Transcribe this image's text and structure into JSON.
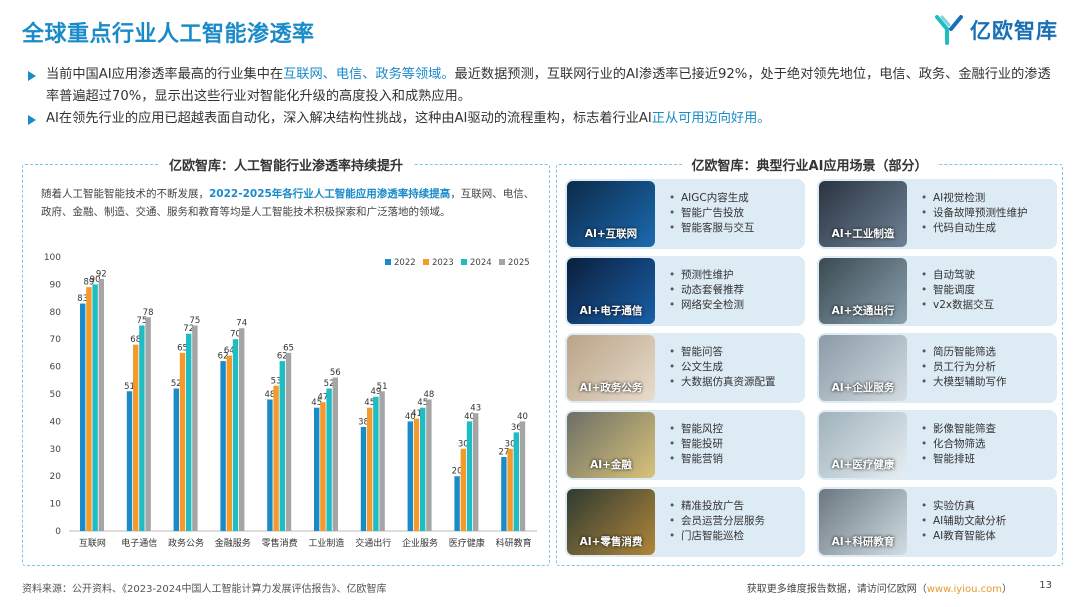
{
  "title": "全球重点行业人工智能渗透率",
  "logo_text": "亿欧智库",
  "bullets": [
    {
      "segments": [
        {
          "text": "当前中国AI应用渗透率最高的行业集中在",
          "hl": false
        },
        {
          "text": "互联网、电信、政务等领域。",
          "hl": true
        },
        {
          "text": "最近数据预测，互联网行业的AI渗透率已接近92%，处于绝对领先地位，电信、政务、金融行业的渗透率普遍超过70%，显示出这些行业对智能化升级的高度投入和成熟应用。",
          "hl": false
        }
      ]
    },
    {
      "segments": [
        {
          "text": "AI在领先行业的应用已超越表面自动化，深入解决结构性挑战，这种由AI驱动的流程重构，标志着行业AI",
          "hl": false
        },
        {
          "text": "正从可用迈向好用。",
          "hl": true
        }
      ]
    }
  ],
  "left_panel": {
    "title": "亿欧智库：人工智能行业渗透率持续提升",
    "intro_before": "随着人工智能智能技术的不断发展，",
    "intro_hl": "2022-2025年各行业人工智能应用渗透率持续提高",
    "intro_after": "，互联网、电信、政府、金融、制造、交通、服务和教育等均是人工智能技术积极探索和广泛落地的领域。"
  },
  "chart_data": {
    "type": "bar",
    "categories": [
      "互联网",
      "电子通信",
      "政务公务",
      "金融服务",
      "零售消费",
      "工业制造",
      "交通出行",
      "企业服务",
      "医疗健康",
      "科研教育"
    ],
    "series": [
      {
        "name": "2022",
        "color": "#1A8BC9",
        "values": [
          83,
          51,
          52,
          62,
          48,
          45,
          38,
          40,
          20,
          27
        ]
      },
      {
        "name": "2023",
        "color": "#F39A2B",
        "values": [
          89,
          68,
          65,
          64,
          53,
          47,
          45,
          41,
          30,
          30
        ]
      },
      {
        "name": "2024",
        "color": "#1FBCC2",
        "values": [
          90,
          75,
          72,
          70,
          62,
          52,
          49,
          45,
          40,
          36
        ]
      },
      {
        "name": "2025",
        "color": "#A5A5A5",
        "values": [
          92,
          78,
          75,
          74,
          65,
          56,
          51,
          48,
          43,
          40
        ]
      }
    ],
    "ylim": [
      0,
      100
    ],
    "yticks": [
      0,
      10,
      20,
      30,
      40,
      50,
      60,
      70,
      80,
      90,
      100
    ],
    "legend": "top-right",
    "grid": false
  },
  "right_panel": {
    "title": "亿欧智库：典型行业AI应用场景（部分）",
    "cards": [
      {
        "label": "AI+互联网",
        "items": [
          "AIGC内容生成",
          "智能广告投放",
          "智能客服与交互"
        ]
      },
      {
        "label": "AI+工业制造",
        "items": [
          "AI视觉检测",
          "设备故障预测性维护",
          "代码自动生成"
        ]
      },
      {
        "label": "AI+电子通信",
        "items": [
          "预测性维护",
          "动态套餐推荐",
          "网络安全检测"
        ]
      },
      {
        "label": "AI+交通出行",
        "items": [
          "自动驾驶",
          "智能调度",
          "v2x数据交互"
        ]
      },
      {
        "label": "AI+政务公务",
        "items": [
          "智能问答",
          "公文生成",
          "大数据仿真资源配置"
        ]
      },
      {
        "label": "AI+企业服务",
        "items": [
          "简历智能筛选",
          "员工行为分析",
          "大模型辅助写作"
        ]
      },
      {
        "label": "AI+金融",
        "items": [
          "智能风控",
          "智能投研",
          "智能营销"
        ]
      },
      {
        "label": "AI+医疗健康",
        "items": [
          "影像智能筛查",
          "化合物筛选",
          "智能排班"
        ]
      },
      {
        "label": "AI+零售消费",
        "items": [
          "精准投放广告",
          "会员运营分层服务",
          "门店智能巡检"
        ]
      },
      {
        "label": "AI+科研教育",
        "items": [
          "实验仿真",
          "AI辅助文献分析",
          "AI教育智能体"
        ]
      }
    ]
  },
  "footer": {
    "source": "资料来源：公开资料、《2023-2024中国人工智能计算力发展评估报告》、亿欧智库",
    "more_prefix": "获取更多维度报告数据，请访问亿欧网（",
    "more_link": "www.iyiou.com",
    "more_suffix": "）",
    "page": "13"
  }
}
